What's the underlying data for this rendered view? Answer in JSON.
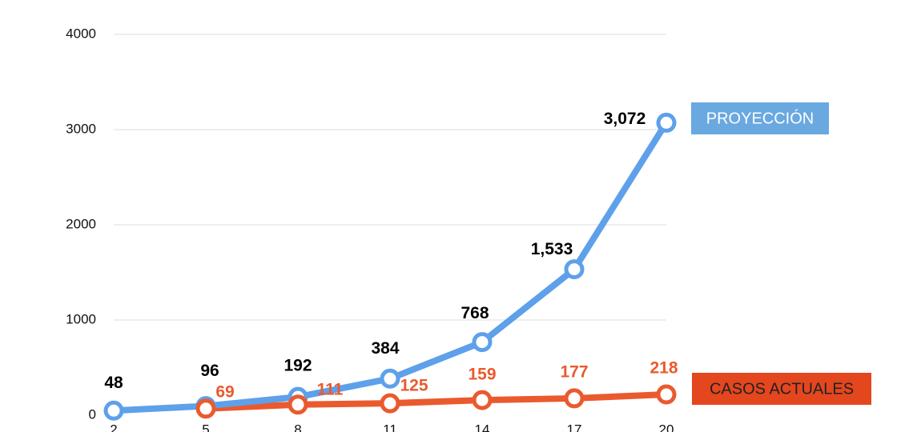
{
  "chart_data": {
    "type": "line",
    "x": [
      2,
      5,
      8,
      11,
      14,
      17,
      20
    ],
    "xlim": [
      2,
      20
    ],
    "xticks": [
      2,
      5,
      8,
      11,
      14,
      17,
      20
    ],
    "ylim": [
      0,
      4000
    ],
    "yticks": [
      0,
      1000,
      2000,
      3000,
      4000
    ],
    "grid": true,
    "series": [
      {
        "name": "PROYECCIÓN",
        "color": "#5ea0ea",
        "values": [
          48,
          96,
          192,
          384,
          768,
          1533,
          3072
        ],
        "value_labels": [
          "48",
          "96",
          "192",
          "384",
          "768",
          "1,533",
          "3,072"
        ]
      },
      {
        "name": "CASOS ACTUALES",
        "color": "#ea5a2e",
        "values": [
          null,
          69,
          111,
          125,
          159,
          177,
          218
        ],
        "value_labels": [
          null,
          "69",
          "111",
          "125",
          "159",
          "177",
          "218"
        ]
      }
    ]
  }
}
